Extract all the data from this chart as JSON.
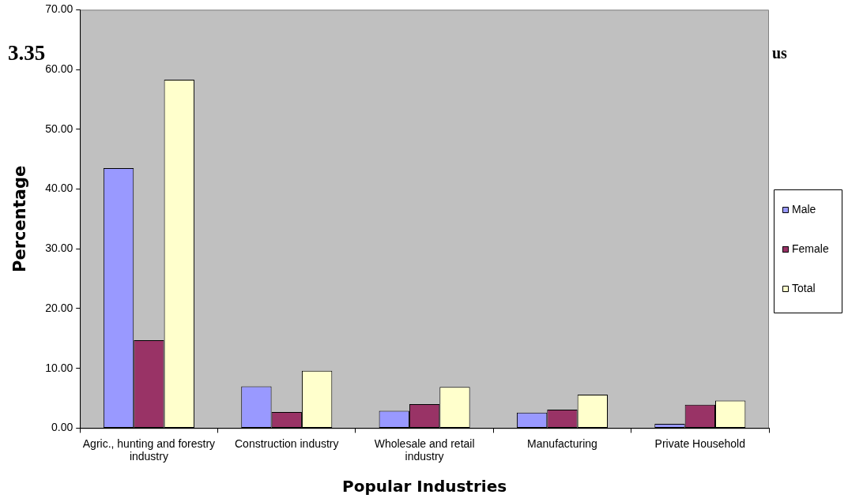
{
  "chart_data": {
    "type": "bar",
    "title": "3.35",
    "annotations": [
      "us"
    ],
    "xlabel": "Popular Industries",
    "ylabel": "Percentage",
    "categories": [
      "Agric., hunting and forestry industry",
      "Construction industry",
      "Wholesale and retail industry",
      "Manufacturing",
      "Private Household"
    ],
    "series": [
      {
        "name": "Male",
        "color": "#9999ff",
        "values": [
          43.5,
          7.0,
          2.9,
          2.6,
          0.7
        ]
      },
      {
        "name": "Female",
        "color": "#993366",
        "values": [
          14.7,
          2.7,
          4.0,
          3.1,
          3.9
        ]
      },
      {
        "name": "Total",
        "color": "#ffffcc",
        "values": [
          58.3,
          9.6,
          6.9,
          5.6,
          4.6
        ]
      }
    ],
    "ylim": [
      0,
      70
    ],
    "yticks": [
      {
        "value": 0,
        "label": "0.00"
      },
      {
        "value": 10,
        "label": "10.00"
      },
      {
        "value": 20,
        "label": "20.00"
      },
      {
        "value": 30,
        "label": "30.00"
      },
      {
        "value": 40,
        "label": "40.00"
      },
      {
        "value": 50,
        "label": "50.00"
      },
      {
        "value": 60,
        "label": "60.00"
      },
      {
        "value": 70,
        "label": "70.00"
      }
    ],
    "legend": "right"
  }
}
